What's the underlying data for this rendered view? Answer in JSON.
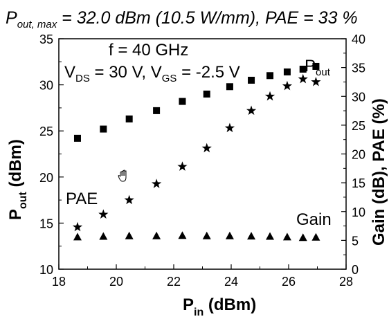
{
  "chart_data": {
    "type": "scatter",
    "title": {
      "main": "P",
      "sub": "out, max",
      "rest": " = 32.0 dBm (10.5 W/mm), PAE = 33 %"
    },
    "xlabel": {
      "main": "P",
      "sub": "in",
      "rest": " (dBm)"
    },
    "ylabel_left": {
      "main": "P",
      "sub": "out",
      "rest": " (dBm)"
    },
    "ylabel_right": "Gain (dB), PAE (%)",
    "xlim": [
      18,
      28
    ],
    "ylim_left": [
      10,
      35
    ],
    "ylim_right": [
      0,
      40
    ],
    "xticks": [
      18,
      20,
      22,
      24,
      26,
      28
    ],
    "yticks_left": [
      10,
      15,
      20,
      25,
      30,
      35
    ],
    "yticks_right": [
      0,
      5,
      10,
      15,
      20,
      25,
      30,
      35,
      40
    ],
    "annotations": {
      "freq": "f = 40 GHz",
      "bias": {
        "v1": "V",
        "v1_sub": "DS",
        "v1_rest": " = 30 V, V",
        "v2_sub": "GS",
        "v2_rest": " = -2.5 V"
      },
      "pout": {
        "main": "P",
        "sub": "out"
      },
      "pae": "PAE",
      "gain": "Gain"
    },
    "series": [
      {
        "name": "Pout",
        "axis": "left",
        "marker": "square",
        "x": [
          18.65,
          19.55,
          20.45,
          21.4,
          22.3,
          23.15,
          23.95,
          24.7,
          25.35,
          25.95,
          26.5,
          26.95
        ],
        "y": [
          24.2,
          25.2,
          26.3,
          27.2,
          28.2,
          29.0,
          29.8,
          30.5,
          31.0,
          31.4,
          31.7,
          32.0
        ]
      },
      {
        "name": "PAE",
        "axis": "right",
        "marker": "star",
        "x": [
          18.65,
          19.55,
          20.45,
          21.4,
          22.3,
          23.15,
          23.95,
          24.7,
          25.35,
          25.95,
          26.5,
          26.95
        ],
        "y": [
          7.3,
          9.5,
          12.0,
          14.8,
          17.8,
          21.0,
          24.5,
          27.5,
          30.0,
          31.8,
          33.0,
          32.5
        ]
      },
      {
        "name": "Gain",
        "axis": "right",
        "marker": "triangle",
        "x": [
          18.65,
          19.55,
          20.45,
          21.4,
          22.3,
          23.15,
          23.95,
          24.7,
          25.35,
          25.95,
          26.5,
          26.95
        ],
        "y": [
          5.6,
          5.7,
          5.8,
          5.8,
          5.85,
          5.8,
          5.8,
          5.75,
          5.7,
          5.6,
          5.5,
          5.55
        ]
      }
    ]
  }
}
